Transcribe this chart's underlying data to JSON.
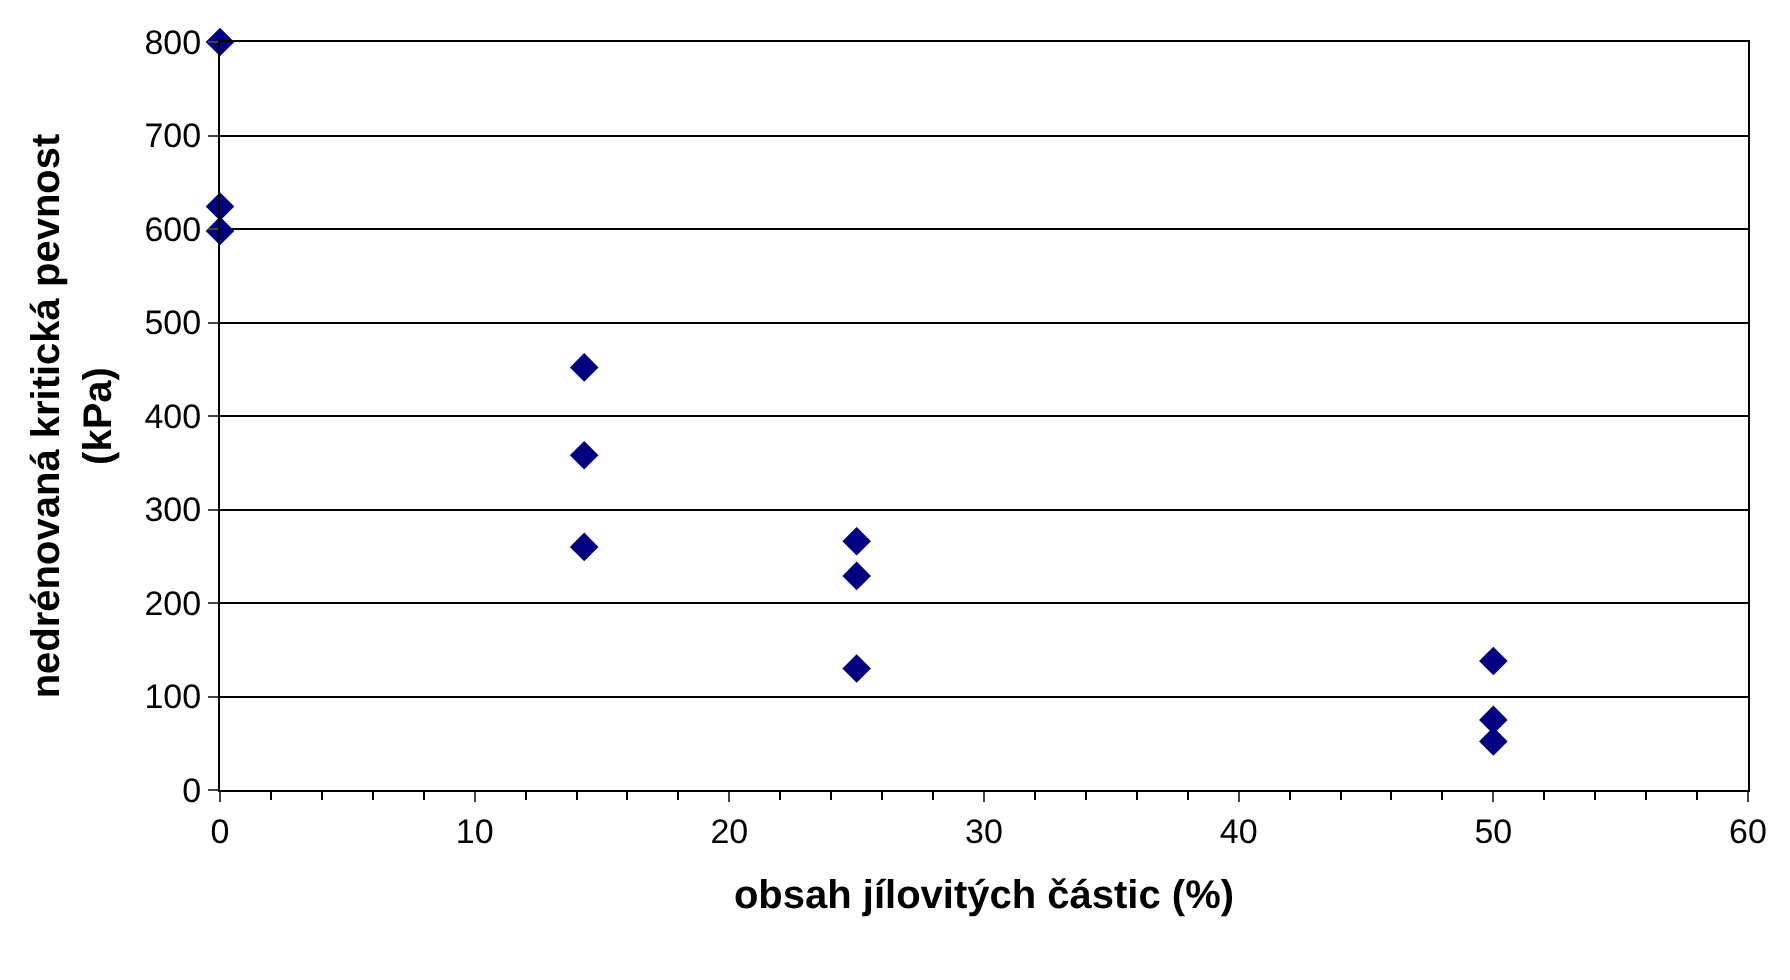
{
  "chart_data": {
    "type": "scatter",
    "xlabel": "obsah jílovitých částic (%)",
    "ylabel": "nedrénovaná kritická pevnost\n(kPa)",
    "x": [
      0,
      0,
      0,
      14.3,
      14.3,
      14.3,
      25,
      25,
      25,
      50,
      50,
      50
    ],
    "series": [
      {
        "color": "#000080",
        "values": [
          800,
          624,
          598,
          452,
          358,
          260,
          266,
          229,
          130,
          138,
          75,
          52
        ]
      }
    ],
    "xlim": [
      0,
      60
    ],
    "xticks": [
      0,
      10,
      20,
      30,
      40,
      50,
      60
    ],
    "ylim": [
      0,
      800
    ],
    "yticks": [
      0,
      100,
      200,
      300,
      400,
      500,
      600,
      700,
      800
    ],
    "grid": "y",
    "marker": "diamond",
    "legend": false
  }
}
